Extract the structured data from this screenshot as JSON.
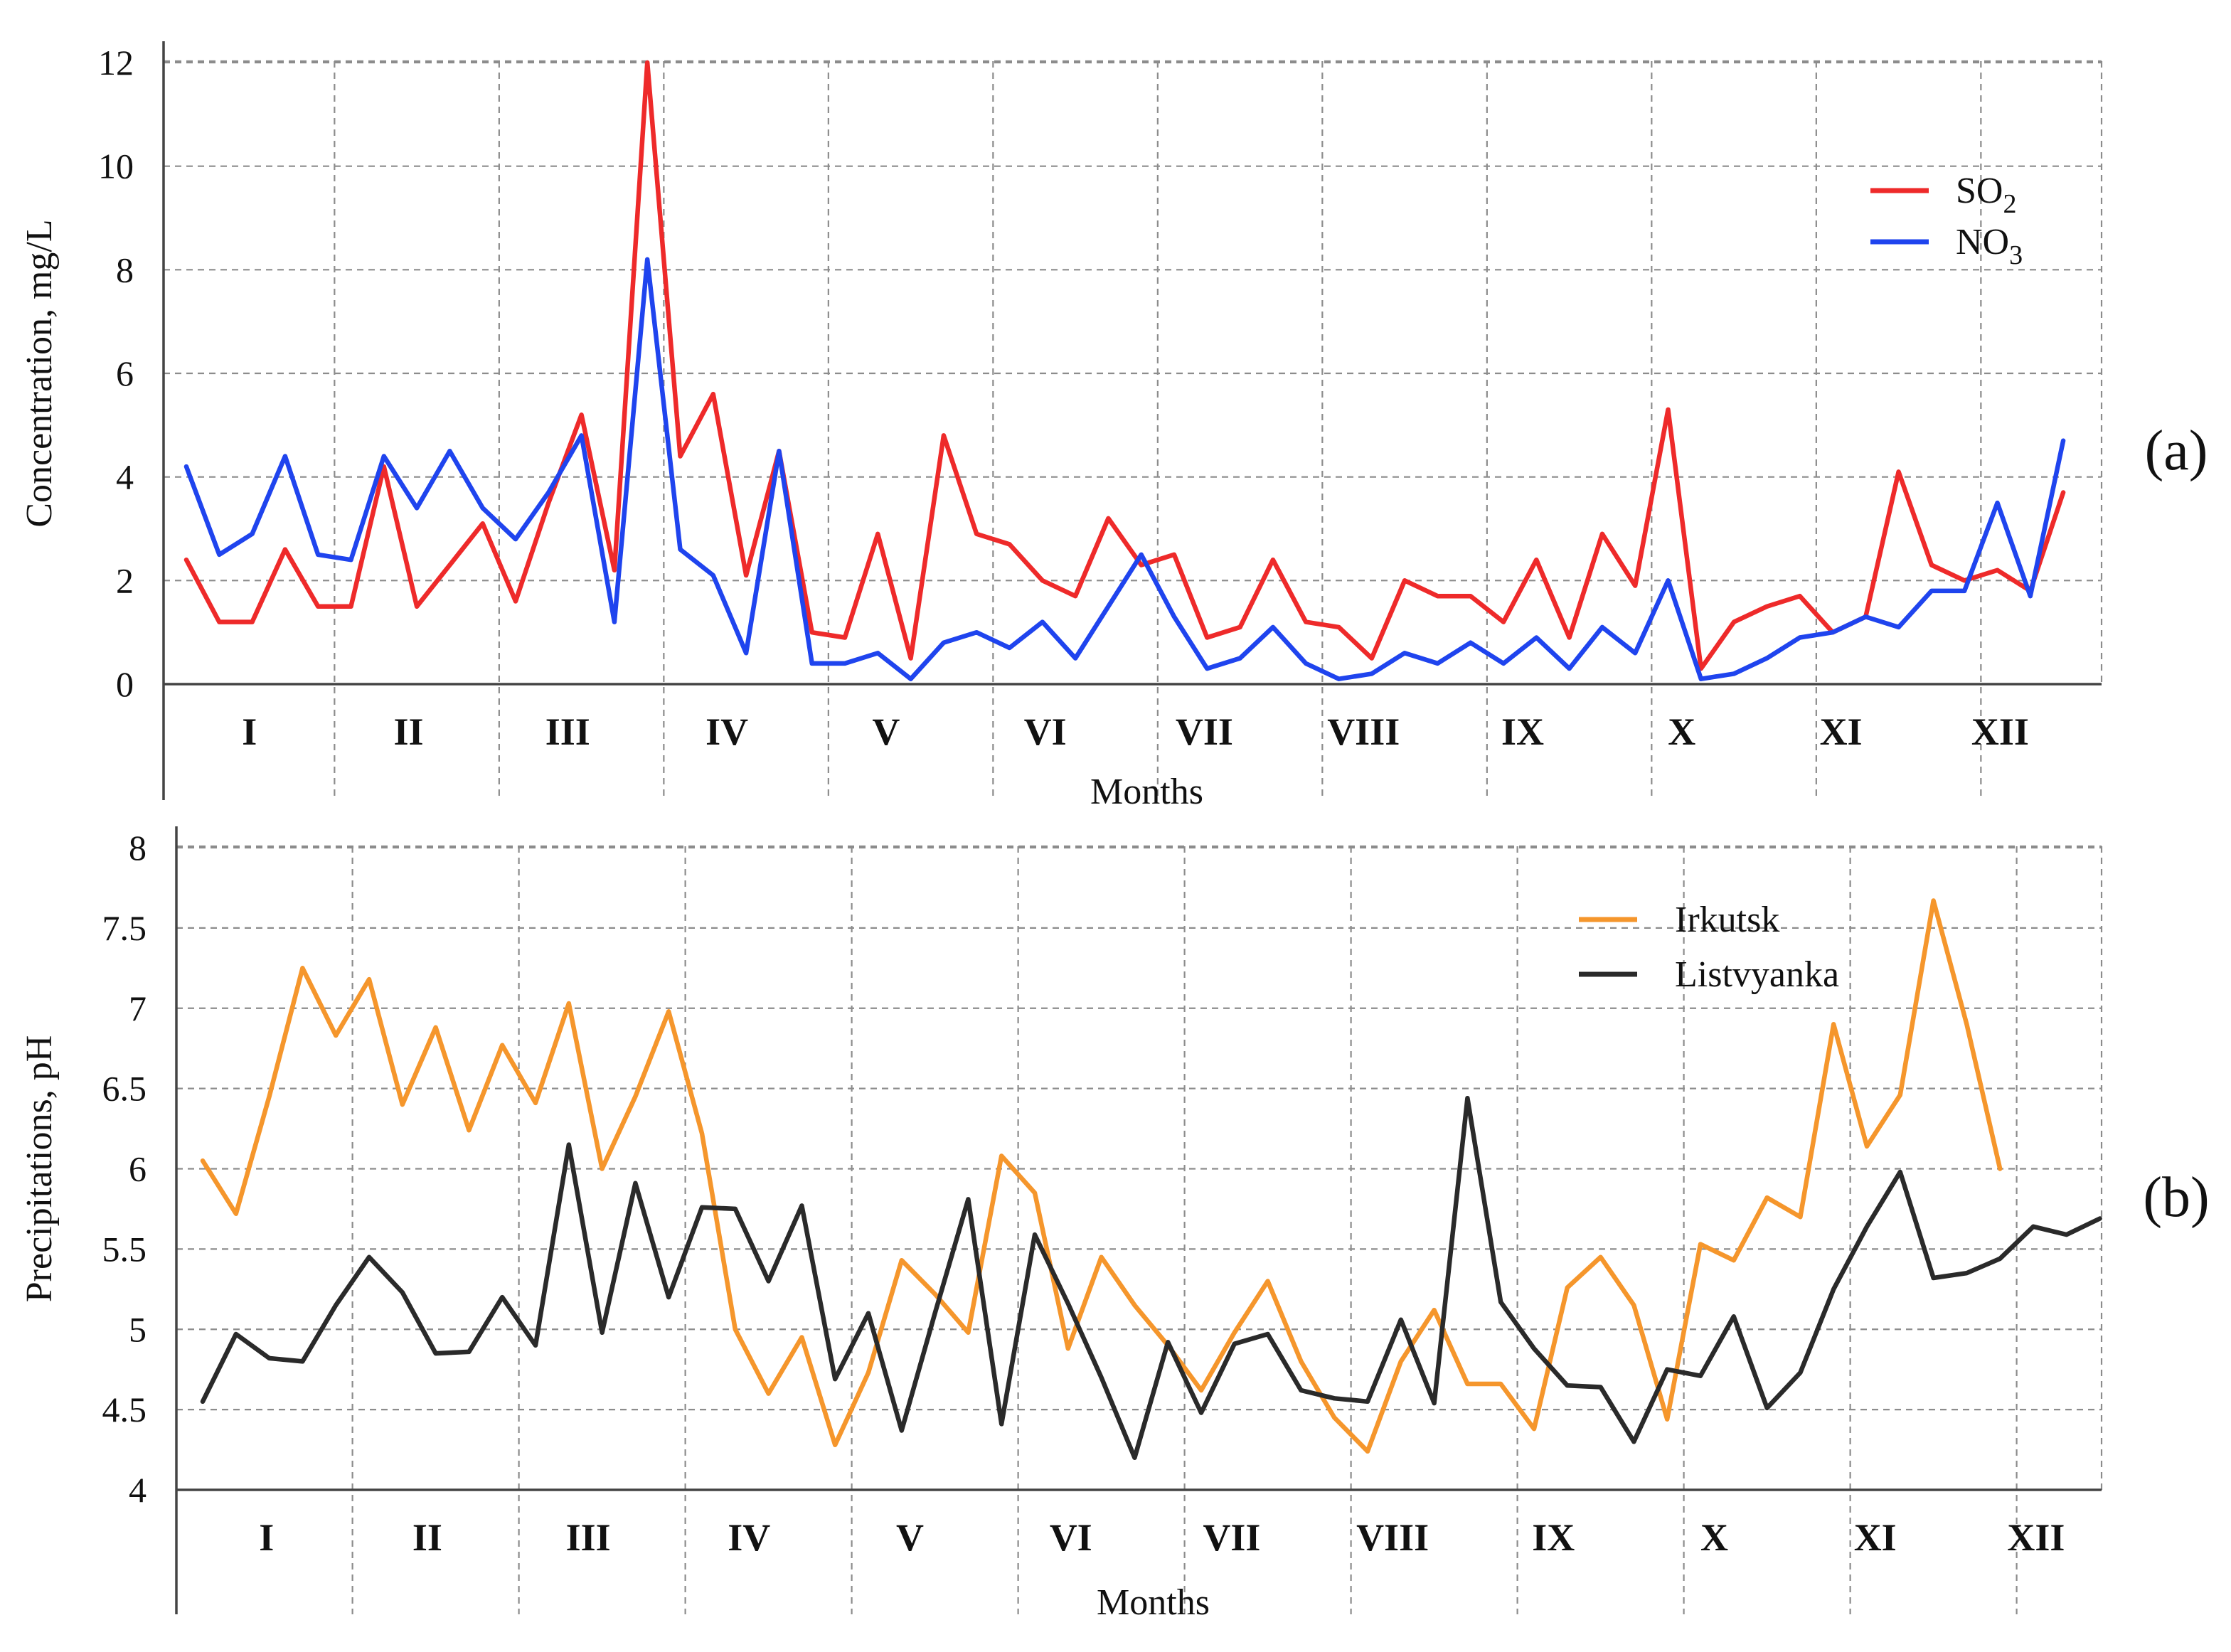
{
  "chart_data": [
    {
      "type": "line",
      "panel_label": "(a)",
      "xlabel": "Months",
      "ylabel": "Concentration, mg/L",
      "ylim": [
        0,
        12
      ],
      "y_ticks": [
        0,
        2,
        4,
        6,
        8,
        10,
        12
      ],
      "months": [
        "I",
        "II",
        "III",
        "IV",
        "V",
        "VI",
        "VII",
        "VIII",
        "IX",
        "X",
        "XI",
        "XII"
      ],
      "points_per_month": 5,
      "grid": true,
      "legend_position": "top-right",
      "series": [
        {
          "name": "SO",
          "subscript": "2",
          "color": "#ee2a2a",
          "values": [
            2.4,
            1.2,
            1.2,
            2.6,
            1.5,
            1.5,
            4.2,
            1.5,
            2.3,
            3.1,
            1.6,
            3.5,
            5.2,
            2.2,
            12.0,
            4.4,
            5.6,
            2.1,
            4.5,
            1.0,
            0.9,
            2.9,
            0.5,
            4.8,
            2.9,
            2.7,
            2.0,
            1.7,
            3.2,
            2.3,
            2.5,
            0.9,
            1.1,
            2.4,
            1.2,
            1.1,
            0.5,
            2.0,
            1.7,
            1.7,
            1.2,
            2.4,
            0.9,
            2.9,
            1.9,
            5.3,
            0.3,
            1.2,
            1.5,
            1.7,
            1.0,
            1.3,
            4.1,
            2.3,
            2.0,
            2.2,
            1.8,
            3.7
          ]
        },
        {
          "name": "NO",
          "subscript": "3",
          "color": "#1f44ee",
          "values": [
            4.2,
            2.5,
            2.9,
            4.4,
            2.5,
            2.4,
            4.4,
            3.4,
            4.5,
            3.4,
            2.8,
            3.7,
            4.8,
            1.2,
            8.2,
            2.6,
            2.1,
            0.6,
            4.5,
            0.4,
            0.4,
            0.6,
            0.1,
            0.8,
            1.0,
            0.7,
            1.2,
            0.5,
            1.5,
            2.5,
            1.3,
            0.3,
            0.5,
            1.1,
            0.4,
            0.1,
            0.2,
            0.6,
            0.4,
            0.8,
            0.4,
            0.9,
            0.3,
            1.1,
            0.6,
            2.0,
            0.1,
            0.2,
            0.5,
            0.9,
            1.0,
            1.3,
            1.1,
            1.8,
            1.8,
            3.5,
            1.7,
            4.7
          ]
        }
      ]
    },
    {
      "type": "line",
      "panel_label": "(b)",
      "xlabel": "Months",
      "ylabel": "Precipitations, pH",
      "ylim": [
        4,
        8
      ],
      "y_ticks": [
        "4",
        "4.5",
        "5",
        "5.5",
        "6",
        "6.5",
        "7",
        "7.5",
        "8"
      ],
      "months": [
        "I",
        "II",
        "III",
        "IV",
        "V",
        "VI",
        "VII",
        "VIII",
        "IX",
        "X",
        "XI",
        "XII"
      ],
      "points_per_month": 5,
      "grid": true,
      "legend_position": "top-right",
      "series": [
        {
          "name": "Irkutsk",
          "color": "#f5962c",
          "values": [
            6.05,
            5.72,
            6.45,
            7.25,
            6.83,
            7.18,
            6.4,
            6.88,
            6.24,
            6.77,
            6.41,
            7.03,
            6.0,
            6.45,
            6.98,
            6.22,
            5.0,
            4.6,
            4.95,
            4.28,
            4.73,
            5.43,
            5.22,
            4.98,
            6.08,
            5.85,
            4.88,
            5.45,
            5.15,
            4.9,
            4.62,
            4.98,
            5.3,
            4.8,
            4.45,
            4.24,
            4.8,
            5.12,
            4.66,
            4.66,
            4.38,
            5.26,
            5.45,
            5.15,
            4.44,
            5.53,
            5.43,
            5.82,
            5.7,
            6.9,
            6.14,
            6.46,
            7.67,
            6.9,
            6.0,
            null,
            null,
            null
          ]
        },
        {
          "name": "Listvyanka",
          "color": "#2a2a2a",
          "values": [
            4.55,
            4.97,
            4.82,
            4.8,
            5.15,
            5.45,
            5.23,
            4.85,
            4.86,
            5.2,
            4.9,
            6.15,
            4.98,
            5.91,
            5.2,
            5.76,
            5.75,
            5.3,
            5.77,
            4.69,
            5.1,
            4.37,
            5.1,
            5.81,
            4.41,
            5.59,
            5.16,
            4.7,
            4.2,
            4.92,
            4.48,
            4.91,
            4.97,
            4.62,
            4.57,
            4.55,
            5.06,
            4.54,
            6.44,
            5.17,
            4.88,
            4.65,
            4.64,
            4.3,
            4.75,
            4.71,
            5.08,
            4.51,
            4.73,
            5.25,
            5.64,
            5.98,
            5.32,
            5.35,
            5.44,
            5.64,
            5.59,
            5.69
          ]
        }
      ]
    }
  ]
}
